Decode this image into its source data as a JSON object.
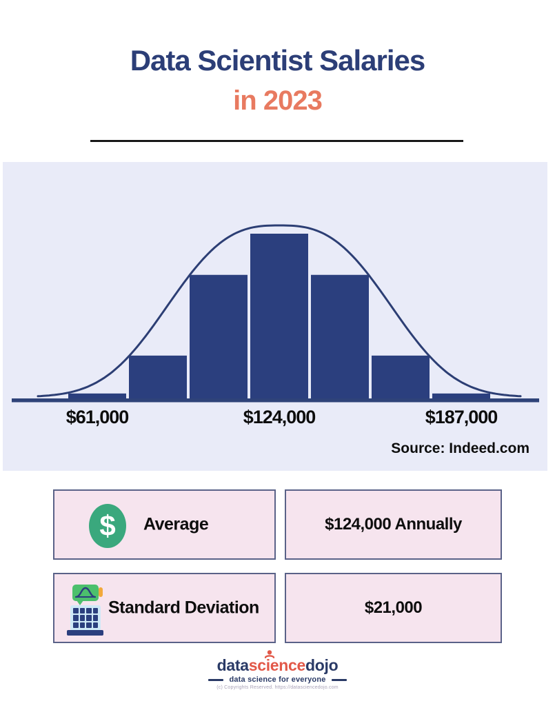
{
  "header": {
    "title_line1": "Data Scientist Salaries",
    "title_line2": "in 2023"
  },
  "chart_data": {
    "type": "bar",
    "subtype": "histogram_with_normal_curve",
    "title": "Data Scientist Salaries in 2023",
    "mean_salary": 124000,
    "std_dev_salary": 21000,
    "bin_centers_salary": [
      61000,
      82000,
      103000,
      124000,
      145000,
      166000,
      187000
    ],
    "bar_values_relative": [
      0.03,
      0.26,
      0.75,
      1.0,
      0.75,
      0.26,
      0.03
    ],
    "x_tick_labels": [
      "$61,000",
      "$124,000",
      "$187,000"
    ],
    "x_tick_values": [
      61000,
      124000,
      187000
    ],
    "curve": "normal-bell-outline",
    "legend": "none",
    "grid": "off",
    "source": "Source: Indeed.com",
    "bar_color": "#2b3f7e",
    "curve_color": "#2c3e74",
    "axis_color": "#2f4379",
    "panel_bg": "#e9ebf8"
  },
  "cards": {
    "average_label": "Average",
    "average_value": "$124,000 Annually",
    "stddev_label": "Standard Deviation",
    "stddev_value": "$21,000",
    "dollar_glyph": "$"
  },
  "footer": {
    "brand_part1": "data",
    "brand_part2": "science",
    "brand_part3": "dojo",
    "tagline": "data science for everyone",
    "copyright": "(c) Copyrights Reserved. https://datasciencedojo.com"
  },
  "colors": {
    "title_navy": "#2c3e77",
    "title_coral": "#e87a60",
    "card_bg": "#f6e4ee",
    "card_border": "#5a6288",
    "dollar_green": "#3aa87d"
  }
}
